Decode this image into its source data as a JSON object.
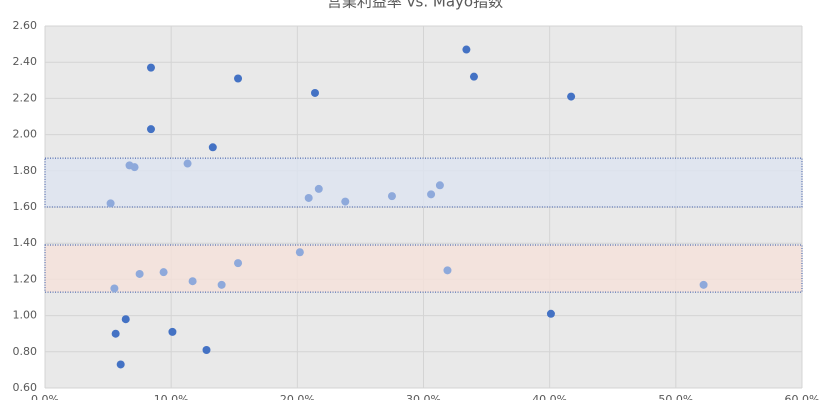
{
  "chart_data": {
    "type": "scatter",
    "title": "営業利益率 vs. Mayo指数",
    "xlim": [
      0,
      60
    ],
    "xticks": [
      {
        "value": 0,
        "label": "0.0%"
      },
      {
        "value": 10,
        "label": "10.0%"
      },
      {
        "value": 20,
        "label": "20.0%"
      },
      {
        "value": 30,
        "label": "30.0%"
      },
      {
        "value": 40,
        "label": "40.0%"
      },
      {
        "value": 50,
        "label": "50.0%"
      },
      {
        "value": 60,
        "label": "60.0%"
      }
    ],
    "ylim": [
      0.6,
      2.6
    ],
    "yticks": [
      {
        "value": 0.6,
        "label": "0.60"
      },
      {
        "value": 0.8,
        "label": "0.80"
      },
      {
        "value": 1,
        "label": "1.00"
      },
      {
        "value": 1.2,
        "label": "1.20"
      },
      {
        "value": 1.4,
        "label": "1.40"
      },
      {
        "value": 1.6,
        "label": "1.60"
      },
      {
        "value": 1.8,
        "label": "1.80"
      },
      {
        "value": 2,
        "label": "2.00"
      },
      {
        "value": 2.2,
        "label": "2.20"
      },
      {
        "value": 2.4,
        "label": "2.40"
      },
      {
        "value": 2.6,
        "label": "2.60"
      }
    ],
    "grid": true,
    "bands": [
      {
        "range": [
          1.6,
          1.87
        ],
        "color": "#dde4f0",
        "border": "#2f4fa0"
      },
      {
        "range": [
          1.13,
          1.39
        ],
        "color": "#f5e1da",
        "border": "#2f4fa0"
      }
    ],
    "series": [
      {
        "color": "#4472c4",
        "x": [
          8.4,
          8.4,
          15.3,
          13.3,
          21.4,
          33.4,
          34.0,
          41.7,
          5.6,
          6.4,
          6.0,
          10.1,
          12.8,
          40.1
        ],
        "values": [
          2.37,
          2.03,
          2.31,
          1.93,
          2.23,
          2.47,
          2.32,
          2.21,
          0.9,
          0.98,
          0.73,
          0.91,
          0.81,
          1.01
        ]
      },
      {
        "color": "#8ea9db",
        "x": [
          5.2,
          6.7,
          7.1,
          11.3,
          20.9,
          21.7,
          23.8,
          27.5,
          30.6,
          31.3,
          5.5,
          7.5,
          9.4,
          11.7,
          14.0,
          15.3,
          20.2,
          31.9,
          52.2
        ],
        "values": [
          1.62,
          1.83,
          1.82,
          1.84,
          1.65,
          1.7,
          1.63,
          1.66,
          1.67,
          1.72,
          1.15,
          1.23,
          1.24,
          1.19,
          1.17,
          1.29,
          1.35,
          1.25,
          1.17
        ]
      }
    ]
  }
}
